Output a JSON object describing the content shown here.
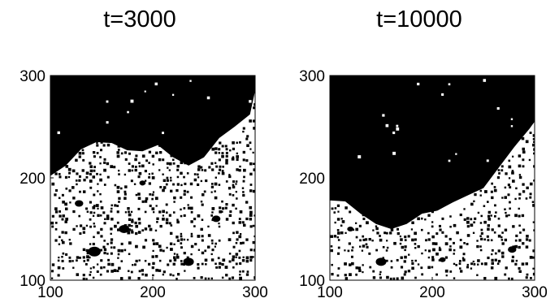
{
  "chart_data": [
    {
      "type": "scatter",
      "title": "t=3000",
      "xlabel": "",
      "ylabel": "",
      "xlim": [
        100,
        300
      ],
      "ylim": [
        100,
        300
      ],
      "xticks": [
        "100",
        "200",
        "300"
      ],
      "yticks": [
        "100",
        "200",
        "300"
      ],
      "grid": false,
      "description_of_field": "lattice occupancy snapshot",
      "front_profile": {
        "x": [
          100,
          115,
          130,
          145,
          160,
          175,
          190,
          205,
          220,
          235,
          250,
          265,
          280,
          295,
          300
        ],
        "y": [
          202,
          212,
          228,
          235,
          234,
          227,
          226,
          232,
          220,
          212,
          220,
          239,
          250,
          262,
          285
        ]
      },
      "cluster_density": 0.3
    },
    {
      "type": "scatter",
      "title": "t=10000",
      "xlabel": "",
      "ylabel": "",
      "xlim": [
        100,
        300
      ],
      "ylim": [
        100,
        300
      ],
      "xticks": [
        "100",
        "200",
        "300"
      ],
      "yticks": [
        "100",
        "200",
        "300"
      ],
      "grid": false,
      "front_profile": {
        "x": [
          100,
          115,
          130,
          145,
          160,
          175,
          190,
          205,
          220,
          235,
          250,
          265,
          280,
          295,
          300
        ],
        "y": [
          178,
          177,
          165,
          155,
          150,
          155,
          165,
          168,
          176,
          183,
          190,
          210,
          230,
          248,
          255
        ]
      },
      "cluster_density": 0.27
    }
  ]
}
